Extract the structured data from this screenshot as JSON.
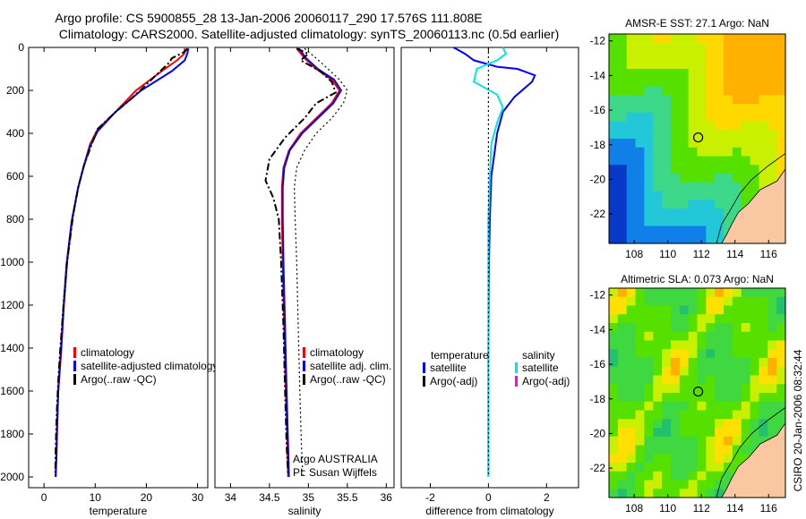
{
  "titles": {
    "line1": "Argo profile: CS 5900855_28 13-Jan-2006 20060117_290 17.576S 111.808E",
    "line2": "Climatology: CARS2000. Satellite-adjusted climatology: synTS_20060113.nc (0.5d earlier)"
  },
  "footer": {
    "credit": "CSIRO 20-Jan-2006 08:32:44"
  },
  "chart_data": [
    {
      "id": "temperature",
      "type": "line",
      "xlabel": "temperature",
      "ylabel": "",
      "xlim": [
        -3,
        32
      ],
      "ylim": [
        2050,
        0
      ],
      "xticks": [
        "0",
        "10",
        "20",
        "30"
      ],
      "xtick_values": [
        0,
        10,
        20,
        30
      ],
      "yticks": [
        "0",
        "200",
        "400",
        "600",
        "800",
        "1000",
        "1200",
        "1400",
        "1600",
        "1800",
        "2000"
      ],
      "ytick_values": [
        0,
        200,
        400,
        600,
        800,
        1000,
        1200,
        1400,
        1600,
        1800,
        2000
      ],
      "legend": [
        "climatology",
        "satellite-adjusted climatology",
        "Argo(..raw -QC)"
      ],
      "series": [
        {
          "name": "climatology",
          "color": "#ff0000",
          "style": "solid",
          "x": [
            27.5,
            27.4,
            26,
            23,
            18,
            14,
            10.5,
            9,
            7.8,
            6.7,
            5.5,
            4.5,
            3.9,
            3.4,
            3.1,
            2.8,
            2.6,
            2.45,
            2.3
          ],
          "y": [
            5,
            30,
            60,
            110,
            200,
            300,
            380,
            450,
            550,
            650,
            800,
            1000,
            1200,
            1400,
            1500,
            1600,
            1750,
            1900,
            2000
          ]
        },
        {
          "name": "satellite-adjusted climatology",
          "color": "#0000ff",
          "style": "solid",
          "x": [
            28.2,
            28,
            27.5,
            25,
            19,
            14,
            10.5,
            9,
            7.7,
            6.6,
            5.4,
            4.4,
            3.8,
            3.3,
            3.0,
            2.75,
            2.55,
            2.4,
            2.25
          ],
          "y": [
            5,
            30,
            60,
            110,
            200,
            300,
            390,
            460,
            560,
            660,
            810,
            1010,
            1210,
            1410,
            1510,
            1610,
            1760,
            1910,
            2000
          ]
        },
        {
          "name": "Argo(..raw -QC)",
          "color": "#000000",
          "style": "dashdot",
          "x": [
            28,
            27.5,
            25,
            24.5,
            21,
            17,
            14,
            10.5,
            9.5,
            7.8,
            6.7,
            5.7,
            4.5,
            3.8,
            3.2,
            2.8,
            2.5,
            2.3,
            2.2
          ],
          "y": [
            5,
            20,
            50,
            70,
            150,
            240,
            300,
            380,
            440,
            550,
            650,
            780,
            1000,
            1200,
            1400,
            1550,
            1700,
            1850,
            1980
          ]
        }
      ]
    },
    {
      "id": "salinity",
      "type": "line",
      "xlabel": "salinity",
      "ylabel": "",
      "xlim": [
        33.8,
        36.1
      ],
      "ylim": [
        2050,
        0
      ],
      "xticks": [
        "34",
        "34.5",
        "35",
        "35.5",
        "36"
      ],
      "xtick_values": [
        34,
        34.5,
        35,
        35.5,
        36
      ],
      "yticks": [],
      "legend": [
        "climatology",
        "satellite adj. clim.",
        "Argo(..raw -QC)"
      ],
      "annotations": [
        "Argo AUSTRALIA",
        "PI: Susan Wijffels"
      ],
      "series": [
        {
          "name": "climatology",
          "color": "#ff0000",
          "style": "solid",
          "x": [
            34.85,
            34.95,
            35.1,
            35.3,
            35.4,
            35.3,
            35.1,
            34.9,
            34.75,
            34.68,
            34.66,
            34.66,
            34.67,
            34.69,
            34.71,
            34.73,
            34.74
          ],
          "y": [
            5,
            50,
            100,
            150,
            200,
            260,
            330,
            400,
            480,
            560,
            650,
            800,
            1000,
            1300,
            1600,
            1850,
            2000
          ]
        },
        {
          "name": "satellite adj. clim.",
          "color": "#0000ff",
          "style": "solid",
          "x": [
            34.88,
            34.97,
            35.12,
            35.33,
            35.42,
            35.32,
            35.12,
            34.92,
            34.76,
            34.69,
            34.67,
            34.67,
            34.68,
            34.7,
            34.72,
            34.74,
            34.75
          ],
          "y": [
            5,
            50,
            100,
            150,
            200,
            260,
            330,
            400,
            480,
            560,
            650,
            800,
            1000,
            1300,
            1600,
            1850,
            2000
          ]
        },
        {
          "name": "Argo(..raw -QC)",
          "color": "#000000",
          "style": "dashdot",
          "x": [
            34.85,
            35.0,
            34.9,
            35.15,
            35.3,
            35.35,
            35.1,
            34.95,
            34.7,
            34.5,
            34.45,
            34.55,
            34.62,
            34.65,
            34.68,
            34.7,
            34.72,
            34.74
          ],
          "y": [
            5,
            30,
            60,
            110,
            160,
            210,
            260,
            330,
            420,
            520,
            620,
            700,
            800,
            1000,
            1300,
            1600,
            1850,
            1990
          ]
        },
        {
          "name": "Argo(..raw -QC) unadjusted",
          "color": "#000000",
          "style": "dotted",
          "x": [
            34.95,
            35.1,
            35.25,
            35.4,
            35.5,
            35.45,
            35.3,
            35.1,
            34.95,
            34.85,
            34.82,
            34.83,
            34.85,
            34.87,
            34.89,
            34.91,
            34.93
          ],
          "y": [
            5,
            50,
            100,
            150,
            200,
            260,
            330,
            400,
            480,
            560,
            650,
            800,
            1000,
            1300,
            1600,
            1850,
            2000
          ]
        }
      ]
    },
    {
      "id": "difference",
      "type": "line",
      "xlabel": "difference from climatology",
      "ylabel": "",
      "xlim": [
        -3,
        3.1
      ],
      "ylim": [
        2050,
        0
      ],
      "xticks": [
        "-2",
        "0",
        "2"
      ],
      "xtick_values": [
        -2,
        0,
        2
      ],
      "yticks": [],
      "legend_headers": [
        "temperature",
        "salinity"
      ],
      "legend": [
        "satellite",
        "Argo(-adj)",
        "satellite",
        "Argo(-adj)"
      ],
      "series": [
        {
          "name": "temperature satellite",
          "color": "#0000ff",
          "style": "solid",
          "x": [
            -1.2,
            -0.8,
            -0.5,
            0.3,
            1.0,
            1.6,
            1.5,
            0.9,
            0.5,
            0.3,
            0.2,
            0.1,
            0.05,
            0.02,
            0.0,
            0.0,
            0.0
          ],
          "y": [
            0,
            30,
            60,
            90,
            100,
            130,
            160,
            230,
            300,
            400,
            500,
            600,
            800,
            1000,
            1400,
            1800,
            2000
          ]
        },
        {
          "name": "salinity satellite",
          "color": "#00e6e6",
          "style": "solid",
          "x": [
            0.5,
            0.6,
            0.3,
            -0.4,
            -0.5,
            0.3,
            0.5,
            0.3,
            0.1,
            0.05,
            0.0,
            0.0,
            0.0,
            0.0,
            0.0
          ],
          "y": [
            0,
            30,
            60,
            100,
            160,
            220,
            280,
            350,
            450,
            600,
            800,
            1000,
            1400,
            1800,
            2000
          ]
        },
        {
          "name": "zero line",
          "color": "#000000",
          "style": "dotted",
          "x": [
            0,
            0
          ],
          "y": [
            0,
            2000
          ]
        }
      ]
    },
    {
      "id": "sst-map",
      "type": "heatmap",
      "title": "AMSR-E SST: 27.1 Argo: NaN",
      "xlim": [
        106.5,
        117
      ],
      "ylim": [
        -23.7,
        -11.6
      ],
      "xticks": [
        "108",
        "110",
        "112",
        "114",
        "116"
      ],
      "xtick_values": [
        108,
        110,
        112,
        114,
        116
      ],
      "yticks": [
        "-12",
        "-14",
        "-16",
        "-18",
        "-20",
        "-22"
      ],
      "ytick_values": [
        -12,
        -14,
        -16,
        -18,
        -20,
        -22
      ],
      "marker": {
        "lon": 111.808,
        "lat": -17.576
      }
    },
    {
      "id": "sla-map",
      "type": "heatmap",
      "title": "Altimetric SLA: 0.073 Argo: NaN",
      "xlim": [
        106.5,
        117
      ],
      "ylim": [
        -23.7,
        -11.6
      ],
      "xticks": [
        "108",
        "110",
        "112",
        "114",
        "116"
      ],
      "xtick_values": [
        108,
        110,
        112,
        114,
        116
      ],
      "yticks": [
        "-12",
        "-14",
        "-16",
        "-18",
        "-20",
        "-22"
      ],
      "ytick_values": [
        -12,
        -14,
        -16,
        -18,
        -20,
        -22
      ],
      "marker": {
        "lon": 111.808,
        "lat": -17.576
      }
    }
  ]
}
